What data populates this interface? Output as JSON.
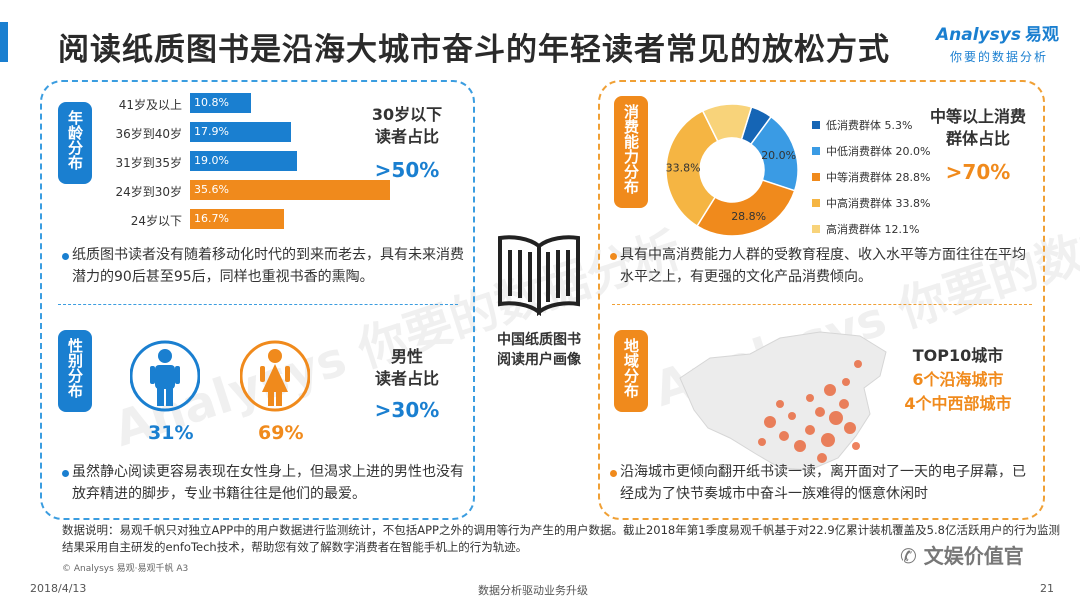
{
  "title": "阅读纸质图书是沿海大城市奋斗的年轻读者常见的放松方式",
  "logo": {
    "brand": "Analysys",
    "brand_cn": "易观",
    "slogan": "你要的数据分析"
  },
  "age_section": {
    "tag": "年龄分布",
    "callout_line1": "30岁以下",
    "callout_line2": "读者占比",
    "callout_value": ">50%",
    "bullet": "纸质图书读者没有随着移动化时代的到来而老去，具有未来消费潜力的90后甚至95后，同样也重视书香的熏陶。"
  },
  "gender_section": {
    "tag": "性别分布",
    "male_pct": "31%",
    "female_pct": "69%",
    "callout_line1": "男性",
    "callout_line2": "读者占比",
    "callout_value": ">30%",
    "bullet": "虽然静心阅读更容易表现在女性身上，但渴求上进的男性也没有放弃精进的脚步，专业书籍往往是他们的最爱。"
  },
  "center": {
    "label_line1": "中国纸质图书",
    "label_line2": "阅读用户画像"
  },
  "consumption_section": {
    "tag": "消费能力分布",
    "callout_line1": "中等以上消费",
    "callout_line2": "群体占比",
    "callout_value": ">70%",
    "bullet": "具有中高消费能力人群的受教育程度、收入水平等方面往往在平均水平之上，有更强的文化产品消费倾向。"
  },
  "region_section": {
    "tag": "地域分布",
    "callout_line1": "TOP10城市",
    "callout_line2": "6个沿海城市",
    "callout_line3": "4个中西部城市",
    "bullet": "沿海城市更倾向翻开纸书读一读，离开面对了一天的电子屏幕，已经成为了快节奏城市中奋斗一族难得的惬意休闲时"
  },
  "footer": {
    "note": "数据说明：易观千帆只对独立APP中的用户数据进行监测统计，不包括APP之外的调用等行为产生的用户数据。截止2018年第1季度易观千帆基于对22.9亿累计装机覆盖及5.8亿活跃用户的行为监测结果采用自主研发的enfoTech技术，帮助您有效了解数字消费者在智能手机上的行为轨迹。",
    "copyright": "© Analysys 易观·易观千帆 A3",
    "date": "2018/4/13",
    "slogan": "数据分析驱动业务升级",
    "page": "21",
    "wechat": "文娱价值官"
  },
  "colors": {
    "blue": "#1a7fd0",
    "orange": "#f08a1c"
  },
  "chart_data": [
    {
      "type": "bar",
      "orientation": "horizontal",
      "categories": [
        "41岁及以上",
        "36岁到40岁",
        "31岁到35岁",
        "24岁到30岁",
        "24岁以下"
      ],
      "values": [
        10.8,
        17.9,
        19.0,
        35.6,
        16.7
      ],
      "value_labels": [
        "10.8%",
        "17.9%",
        "19.0%",
        "35.6%",
        "16.7%"
      ],
      "colors": [
        "#1a7fd0",
        "#1a7fd0",
        "#1a7fd0",
        "#f08a1c",
        "#f08a1c"
      ],
      "unit": "%"
    },
    {
      "type": "pie",
      "style": "donut",
      "categories": [
        "低消费群体",
        "中低消费群体",
        "中等消费群体",
        "中高消费群体",
        "高消费群体"
      ],
      "values": [
        5.3,
        20.0,
        28.8,
        33.8,
        12.1
      ],
      "legend_labels": [
        "低消费群体 5.3%",
        "中低消费群体 20.0%",
        "中等消费群体 28.8%",
        "中高消费群体 33.8%",
        "高消费群体 12.1%"
      ],
      "slice_labels": [
        "",
        "20.0%",
        "28.8%",
        "33.8%",
        ""
      ],
      "colors": [
        "#1565b5",
        "#3a9be4",
        "#f08a1c",
        "#f5b543",
        "#f8d37a"
      ],
      "legend": "right",
      "unit": "%"
    },
    {
      "type": "pie",
      "categories": [
        "男性",
        "女性"
      ],
      "values": [
        31,
        69
      ],
      "unit": "%"
    }
  ]
}
